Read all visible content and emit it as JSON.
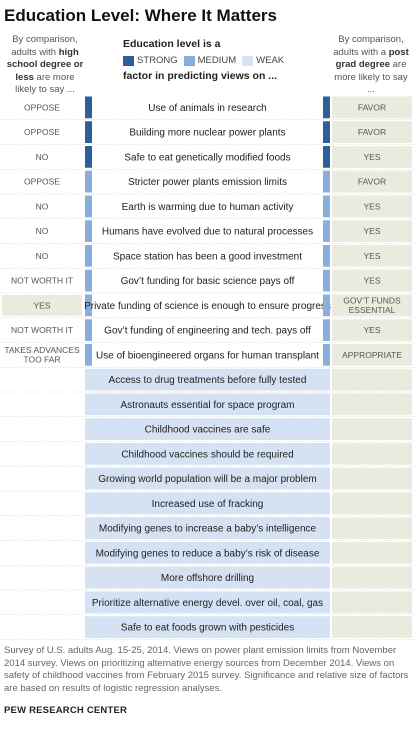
{
  "title": "Education Level: Where It Matters",
  "left_note": {
    "pre": "By comparison, adults with ",
    "bold": "high school degree or less",
    "post": " are more likely to say ..."
  },
  "right_note": {
    "pre": "By comparison, adults with a ",
    "bold": "post grad degree",
    "post": " are more likely to say ..."
  },
  "legend": {
    "title": "Education level is a",
    "subtitle": "factor in predicting views on ...",
    "items": [
      {
        "label": "STRONG",
        "color": "#2e5f98"
      },
      {
        "label": "MEDIUM",
        "color": "#88aedc"
      },
      {
        "label": "WEAK",
        "color": "#d4e2f3"
      }
    ]
  },
  "colors": {
    "strong": "#2e5f98",
    "medium": "#88aedc",
    "weak": "#d4e2f3",
    "answer_bg": "#eaeadf",
    "text": "#333333"
  },
  "chart_data": {
    "type": "table",
    "columns": [
      "High school or less more likely to say",
      "Issue",
      "Post grad more likely to say"
    ],
    "rows": [
      {
        "issue": "Use of animals in research",
        "strength": "strong",
        "left": "OPPOSE",
        "right": "FAVOR"
      },
      {
        "issue": "Building more nuclear power plants",
        "strength": "strong",
        "left": "OPPOSE",
        "right": "FAVOR"
      },
      {
        "issue": "Safe to eat genetically modified foods",
        "strength": "strong",
        "left": "NO",
        "right": "YES"
      },
      {
        "issue": "Stricter power plants emission limits",
        "strength": "medium",
        "left": "OPPOSE",
        "right": "FAVOR"
      },
      {
        "issue": "Earth is warming due to human activity",
        "strength": "medium",
        "left": "NO",
        "right": "YES"
      },
      {
        "issue": "Humans have evolved due to natural processes",
        "strength": "medium",
        "left": "NO",
        "right": "YES"
      },
      {
        "issue": "Space station has been a good investment",
        "strength": "medium",
        "left": "NO",
        "right": "YES"
      },
      {
        "issue": "Gov’t funding for basic science pays off",
        "strength": "medium",
        "left": "NOT WORTH IT",
        "right": "YES"
      },
      {
        "issue": "Private funding of science is enough to ensure progress",
        "strength": "medium",
        "left": "YES",
        "right": "GOV’T FUNDS ESSENTIAL"
      },
      {
        "issue": "Gov’t funding of engineering and tech. pays off",
        "strength": "medium",
        "left": "NOT WORTH IT",
        "right": "YES"
      },
      {
        "issue": "Use of bioengineered organs for human transplant",
        "strength": "medium",
        "left": "TAKES ADVANCES TOO FAR",
        "right": "APPROPRIATE"
      },
      {
        "issue": "Access to drug treatments before fully tested",
        "strength": "weak",
        "left": "",
        "right": ""
      },
      {
        "issue": "Astronauts essential for space program",
        "strength": "weak",
        "left": "",
        "right": ""
      },
      {
        "issue": "Childhood vaccines are safe",
        "strength": "weak",
        "left": "",
        "right": ""
      },
      {
        "issue": "Childhood vaccines should be required",
        "strength": "weak",
        "left": "",
        "right": ""
      },
      {
        "issue": "Growing world population will be a major problem",
        "strength": "weak",
        "left": "",
        "right": ""
      },
      {
        "issue": "Increased use of fracking",
        "strength": "weak",
        "left": "",
        "right": ""
      },
      {
        "issue": "Modifying genes to increase a baby’s intelligence",
        "strength": "weak",
        "left": "",
        "right": ""
      },
      {
        "issue": "Modifying genes to reduce a baby’s risk of disease",
        "strength": "weak",
        "left": "",
        "right": ""
      },
      {
        "issue": "More offshore drilling",
        "strength": "weak",
        "left": "",
        "right": ""
      },
      {
        "issue": "Prioritize alternative energy devel. over oil, coal, gas",
        "strength": "weak",
        "left": "",
        "right": ""
      },
      {
        "issue": "Safe to eat foods grown with pesticides",
        "strength": "weak",
        "left": "",
        "right": ""
      }
    ]
  },
  "footnote": "Survey of U.S. adults Aug. 15-25, 2014. Views on power plant emission limits from November 2014 survey. Views on prioritizing alternative energy sources from December 2014. Views on safety of childhood vaccines from February 2015 survey. Significance and relative size of factors are based on results of logistic regression analyses.",
  "source": "PEW RESEARCH CENTER"
}
